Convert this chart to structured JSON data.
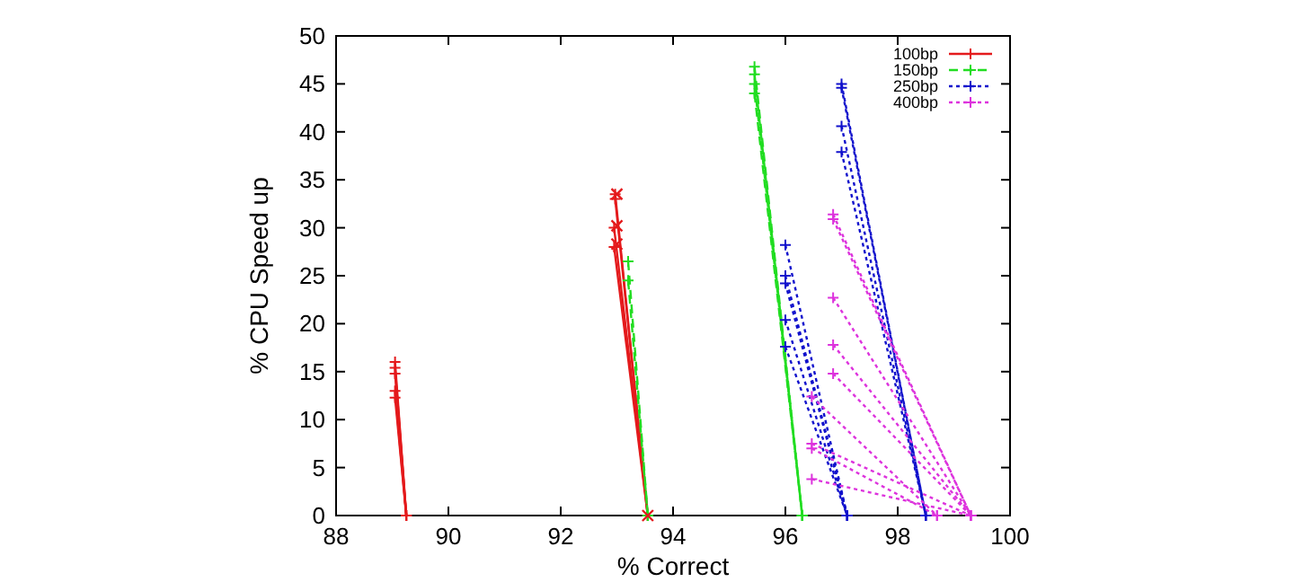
{
  "chart_data": {
    "type": "line",
    "xlabel": "% Correct",
    "ylabel": "% CPU Speed up",
    "xlim": [
      88,
      100
    ],
    "ylim": [
      0,
      50
    ],
    "xticks": [
      88,
      90,
      92,
      94,
      96,
      98,
      100
    ],
    "yticks": [
      0,
      5,
      10,
      15,
      20,
      25,
      30,
      35,
      40,
      45,
      50
    ],
    "grid": false,
    "legend": "top right",
    "marker": "cross",
    "series": [
      {
        "name": "100bp",
        "color": "#e41a1c",
        "line_style": "solid",
        "x": [
          89.05,
          89.25
        ],
        "values": [
          16,
          0
        ]
      },
      {
        "color": "#e41a1c",
        "line_style": "solid",
        "x": [
          89.05,
          89.25
        ],
        "values": [
          15.4,
          0
        ]
      },
      {
        "color": "#e41a1c",
        "line_style": "solid",
        "x": [
          89.05,
          89.25
        ],
        "values": [
          14.8,
          0
        ]
      },
      {
        "color": "#e41a1c",
        "line_style": "solid",
        "x": [
          89.05,
          89.25
        ],
        "values": [
          13,
          0
        ]
      },
      {
        "color": "#e41a1c",
        "line_style": "solid",
        "x": [
          89.05,
          89.25
        ],
        "values": [
          12.3,
          0
        ]
      },
      {
        "color": "#e41a1c",
        "line_style": "solid",
        "x": [
          92.97,
          93.55
        ],
        "values": [
          33.5,
          0
        ]
      },
      {
        "color": "#e41a1c",
        "line_style": "solid",
        "x": [
          92.97,
          93.55
        ],
        "values": [
          33,
          0
        ]
      },
      {
        "color": "#e41a1c",
        "line_style": "solid",
        "x": [
          92.95,
          93.55
        ],
        "values": [
          30,
          0
        ]
      },
      {
        "color": "#e41a1c",
        "line_style": "solid",
        "x": [
          92.95,
          93.55
        ],
        "values": [
          28,
          0
        ]
      },
      {
        "name": "150bp",
        "color": "#22dd22",
        "line_style": "dashed",
        "x": [
          93.2,
          93.55
        ],
        "values": [
          26.5,
          0
        ]
      },
      {
        "color": "#22dd22",
        "line_style": "dashed",
        "x": [
          93.2,
          93.55
        ],
        "values": [
          24.5,
          0
        ]
      },
      {
        "color": "#22dd22",
        "line_style": "dashed",
        "x": [
          95.45,
          96.3
        ],
        "values": [
          46.8,
          0
        ]
      },
      {
        "color": "#22dd22",
        "line_style": "dashed",
        "x": [
          95.45,
          96.3
        ],
        "values": [
          46,
          0
        ]
      },
      {
        "color": "#22dd22",
        "line_style": "dashed",
        "x": [
          95.45,
          96.3
        ],
        "values": [
          45,
          0
        ]
      },
      {
        "color": "#22dd22",
        "line_style": "dashed",
        "x": [
          95.45,
          96.3
        ],
        "values": [
          44,
          0
        ]
      },
      {
        "name": "250bp",
        "color": "#1010cc",
        "line_style": "dotted",
        "x": [
          96,
          97.1
        ],
        "values": [
          28.2,
          0
        ]
      },
      {
        "color": "#1010cc",
        "line_style": "dotted",
        "x": [
          96,
          97.1
        ],
        "values": [
          25,
          0
        ]
      },
      {
        "color": "#1010cc",
        "line_style": "dotted",
        "x": [
          96,
          97.1
        ],
        "values": [
          24.2,
          0
        ]
      },
      {
        "color": "#1010cc",
        "line_style": "dotted",
        "x": [
          96,
          97.1
        ],
        "values": [
          20.4,
          0
        ]
      },
      {
        "color": "#1010cc",
        "line_style": "dotted",
        "x": [
          96,
          97.1
        ],
        "values": [
          17.6,
          0
        ]
      },
      {
        "color": "#1010cc",
        "line_style": "dotted",
        "x": [
          97,
          98.5
        ],
        "values": [
          45,
          0
        ]
      },
      {
        "color": "#1010cc",
        "line_style": "dotted",
        "x": [
          97,
          98.5
        ],
        "values": [
          44.6,
          0
        ]
      },
      {
        "color": "#1010cc",
        "line_style": "dotted",
        "x": [
          97,
          98.5
        ],
        "values": [
          40.6,
          0
        ]
      },
      {
        "color": "#1010cc",
        "line_style": "dotted",
        "x": [
          97,
          98.5
        ],
        "values": [
          37.9,
          0
        ]
      },
      {
        "name": "400bp",
        "color": "#dd33dd",
        "line_style": "dotted",
        "x": [
          96.85,
          99.3
        ],
        "values": [
          31.4,
          0
        ]
      },
      {
        "color": "#dd33dd",
        "line_style": "dotted",
        "x": [
          96.85,
          99.3
        ],
        "values": [
          30.9,
          0
        ]
      },
      {
        "color": "#dd33dd",
        "line_style": "dotted",
        "x": [
          96.85,
          99.3
        ],
        "values": [
          22.7,
          0
        ]
      },
      {
        "color": "#dd33dd",
        "line_style": "dotted",
        "x": [
          96.85,
          99.3
        ],
        "values": [
          17.8,
          0
        ]
      },
      {
        "color": "#dd33dd",
        "line_style": "dotted",
        "x": [
          96.85,
          99.3
        ],
        "values": [
          14.8,
          0
        ]
      },
      {
        "color": "#dd33dd",
        "line_style": "dotted",
        "x": [
          96.47,
          98.7
        ],
        "values": [
          12.4,
          0
        ]
      },
      {
        "color": "#dd33dd",
        "line_style": "dotted",
        "x": [
          96.47,
          99.3
        ],
        "values": [
          7.5,
          0
        ]
      },
      {
        "color": "#dd33dd",
        "line_style": "dotted",
        "x": [
          96.47,
          98.7
        ],
        "values": [
          7,
          0
        ]
      },
      {
        "color": "#dd33dd",
        "line_style": "dotted",
        "x": [
          96.47,
          99.3
        ],
        "values": [
          3.8,
          0
        ]
      },
      {
        "type": "scatter",
        "color": "#e41a1c",
        "x": [
          93,
          93,
          93,
          93.55
        ],
        "values": [
          33.5,
          30.2,
          28.3,
          0
        ]
      }
    ]
  }
}
